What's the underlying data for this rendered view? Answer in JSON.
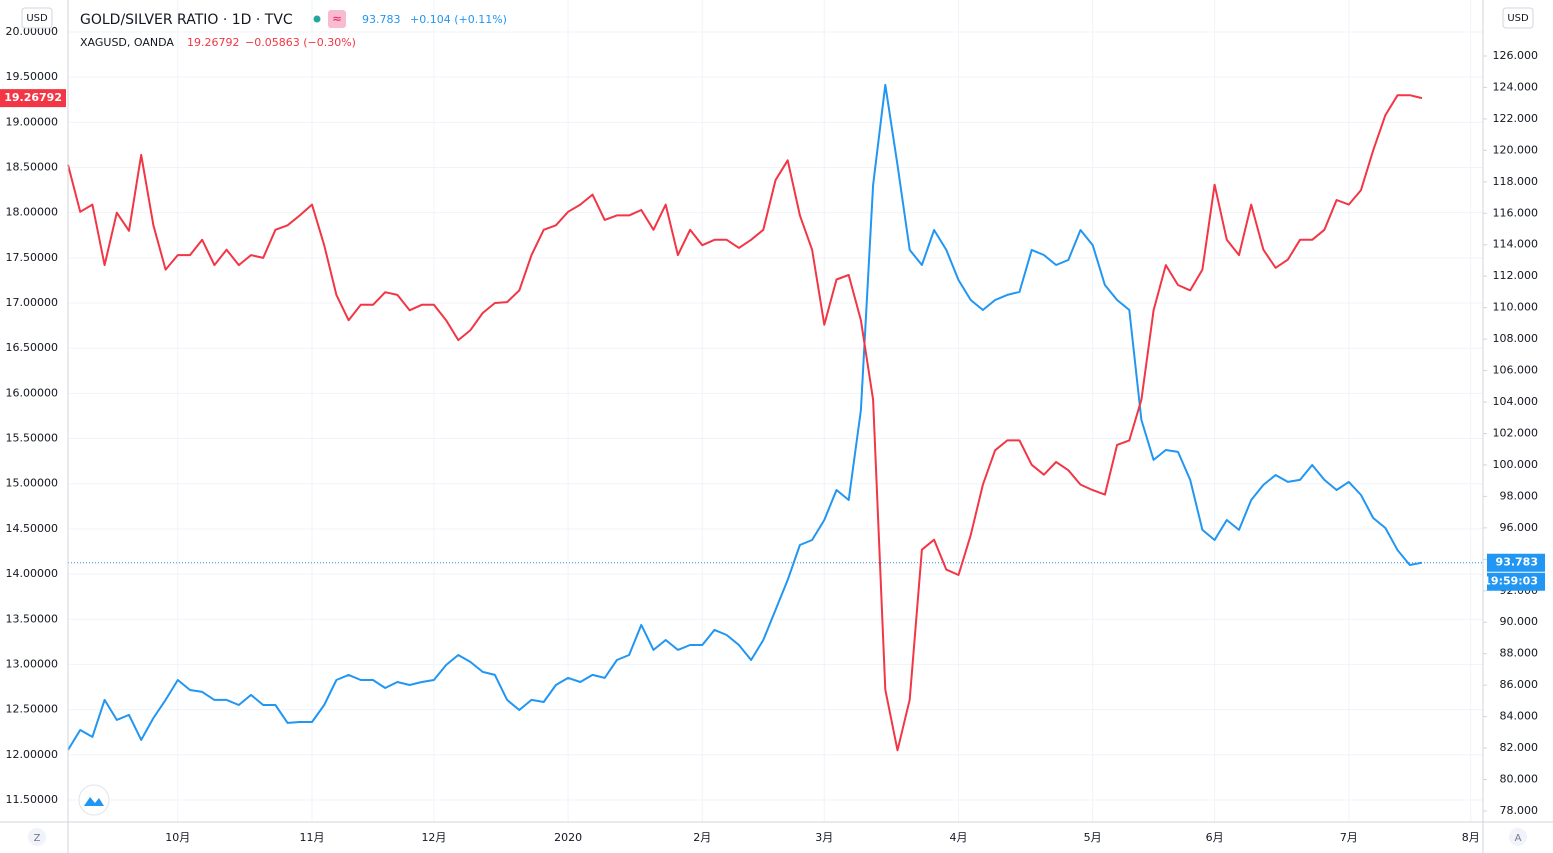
{
  "chart_data": {
    "type": "line",
    "categories": [
      null,
      null,
      null,
      null,
      null,
      null,
      null,
      null,
      null,
      "10月",
      null,
      null,
      null,
      null,
      null,
      null,
      null,
      null,
      null,
      null,
      "11月",
      null,
      null,
      null,
      null,
      null,
      null,
      null,
      null,
      null,
      "12月",
      null,
      null,
      null,
      null,
      null,
      null,
      null,
      null,
      null,
      null,
      "2020",
      null,
      null,
      null,
      null,
      null,
      null,
      null,
      null,
      null,
      null,
      "2月",
      null,
      null,
      null,
      null,
      null,
      null,
      null,
      null,
      null,
      "3月",
      null,
      null,
      null,
      null,
      null,
      null,
      null,
      null,
      null,
      null,
      "4月",
      null,
      null,
      null,
      null,
      null,
      null,
      null,
      null,
      null,
      null,
      "5月",
      null,
      null,
      null,
      null,
      null,
      null,
      null,
      null,
      null,
      "6月",
      null,
      null,
      null,
      null,
      null,
      null,
      null,
      null,
      null,
      null,
      "7月",
      null,
      null,
      null,
      null,
      null,
      null,
      null,
      null,
      null,
      "8月"
    ],
    "series": [
      {
        "name": "GOLD/SILVER RATIO · 1D · TVC",
        "color": "#2196f3",
        "axis": "y2",
        "price": "93.783",
        "change": "+0.104 (+0.11%)",
        "values": [
          81.88,
          83.15,
          82.71,
          85.06,
          83.79,
          84.11,
          82.52,
          83.91,
          85.06,
          86.33,
          85.69,
          85.57,
          85.06,
          85.06,
          84.74,
          85.38,
          84.74,
          84.74,
          83.6,
          83.66,
          83.66,
          84.74,
          86.33,
          86.65,
          86.33,
          86.33,
          85.82,
          86.2,
          86.01,
          86.2,
          86.33,
          87.28,
          87.92,
          87.47,
          86.84,
          86.65,
          85.06,
          84.42,
          85.06,
          84.93,
          86.01,
          86.46,
          86.2,
          86.65,
          86.46,
          87.6,
          87.92,
          89.83,
          88.24,
          88.87,
          88.24,
          88.55,
          88.55,
          89.51,
          89.19,
          88.55,
          87.6,
          88.87,
          90.78,
          92.69,
          94.91,
          95.23,
          96.5,
          98.41,
          97.77,
          103.49,
          117.8,
          124.16,
          119.07,
          113.67,
          112.71,
          114.94,
          113.67,
          111.76,
          110.49,
          109.85,
          110.49,
          110.81,
          111.0,
          113.67,
          113.35,
          112.71,
          113.03,
          114.94,
          113.98,
          111.44,
          110.49,
          109.85,
          102.86,
          100.32,
          100.95,
          100.83,
          99.05,
          95.87,
          95.23,
          96.5,
          95.87,
          97.77,
          98.73,
          99.36,
          98.92,
          99.05,
          100.0,
          99.05,
          98.41,
          98.92,
          98.09,
          96.63,
          95.99,
          94.58,
          93.64,
          93.783,
          null,
          null,
          null,
          null
        ]
      },
      {
        "name": "XAGUSD, OANDA",
        "color": "#f23645",
        "axis": "y",
        "price": "19.26792",
        "change": "−0.05863 (−0.30%)",
        "values": [
          18.53,
          18.01,
          18.09,
          17.42,
          18.0,
          17.8,
          18.64,
          17.86,
          17.37,
          17.53,
          17.53,
          17.7,
          17.42,
          17.59,
          17.42,
          17.53,
          17.5,
          17.81,
          17.86,
          17.97,
          18.09,
          17.64,
          17.09,
          16.81,
          16.98,
          16.98,
          17.12,
          17.09,
          16.92,
          16.98,
          16.98,
          16.81,
          16.59,
          16.7,
          16.89,
          17.0,
          17.01,
          17.14,
          17.53,
          17.81,
          17.86,
          18.01,
          18.09,
          18.2,
          17.92,
          17.97,
          17.97,
          18.03,
          17.81,
          18.09,
          17.53,
          17.81,
          17.64,
          17.7,
          17.7,
          17.61,
          17.7,
          17.81,
          18.36,
          18.58,
          17.97,
          17.59,
          16.76,
          17.26,
          17.31,
          16.81,
          15.93,
          12.72,
          12.05,
          12.61,
          14.27,
          14.38,
          14.05,
          13.99,
          14.43,
          14.99,
          15.37,
          15.48,
          15.48,
          15.21,
          15.1,
          15.24,
          15.15,
          14.99,
          14.93,
          14.88,
          15.43,
          15.48,
          15.93,
          16.92,
          17.42,
          17.2,
          17.14,
          17.37,
          18.31,
          17.7,
          17.53,
          18.09,
          17.59,
          17.39,
          17.48,
          17.7,
          17.7,
          17.81,
          18.14,
          18.09,
          18.25,
          18.69,
          19.08,
          19.3,
          19.3,
          19.26792,
          null,
          null,
          null,
          null
        ]
      }
    ],
    "ylim": [
      11.256,
      20.354
    ],
    "yticks": [
      {
        "value": 11.5,
        "label": "11.50000"
      },
      {
        "value": 12,
        "label": "12.00000"
      },
      {
        "value": 12.5,
        "label": "12.50000"
      },
      {
        "value": 13,
        "label": "13.00000"
      },
      {
        "value": 13.5,
        "label": "13.50000"
      },
      {
        "value": 14,
        "label": "14.00000"
      },
      {
        "value": 14.5,
        "label": "14.50000"
      },
      {
        "value": 15,
        "label": "15.00000"
      },
      {
        "value": 15.5,
        "label": "15.50000"
      },
      {
        "value": 16,
        "label": "16.00000"
      },
      {
        "value": 16.5,
        "label": "16.50000"
      },
      {
        "value": 17,
        "label": "17.00000"
      },
      {
        "value": 17.5,
        "label": "17.50000"
      },
      {
        "value": 18,
        "label": "18.00000"
      },
      {
        "value": 18.5,
        "label": "18.50000"
      },
      {
        "value": 19,
        "label": "19.00000"
      },
      {
        "value": 19.5,
        "label": "19.50000"
      },
      {
        "value": 20,
        "label": "20.00000"
      }
    ],
    "y2lim": [
      77.3,
      129.56
    ],
    "y2ticks": [
      {
        "value": 78,
        "label": "78.000"
      },
      {
        "value": 80,
        "label": "80.000"
      },
      {
        "value": 82,
        "label": "82.000"
      },
      {
        "value": 84,
        "label": "84.000"
      },
      {
        "value": 86,
        "label": "86.000"
      },
      {
        "value": 88,
        "label": "88.000"
      },
      {
        "value": 90,
        "label": "90.000"
      },
      {
        "value": 92,
        "label": "92.000"
      },
      {
        "value": 94,
        "label": "94.000"
      },
      {
        "value": 96,
        "label": "96.000"
      },
      {
        "value": 98,
        "label": "98.000"
      },
      {
        "value": 100,
        "label": "100.000"
      },
      {
        "value": 102,
        "label": "102.000"
      },
      {
        "value": 104,
        "label": "104.000"
      },
      {
        "value": 106,
        "label": "106.000"
      },
      {
        "value": 108,
        "label": "108.000"
      },
      {
        "value": 110,
        "label": "110.000"
      },
      {
        "value": 112,
        "label": "112.000"
      },
      {
        "value": 114,
        "label": "114.000"
      },
      {
        "value": 116,
        "label": "116.000"
      },
      {
        "value": 118,
        "label": "118.000"
      },
      {
        "value": 120,
        "label": "120.000"
      },
      {
        "value": 122,
        "label": "122.000"
      },
      {
        "value": 124,
        "label": "124.000"
      },
      {
        "value": 126,
        "label": "126.000"
      }
    ],
    "grid": true,
    "y_unit": "USD",
    "y2_unit": "USD",
    "countdown": "19:59:03",
    "left_button": "Z",
    "right_button": "A"
  }
}
